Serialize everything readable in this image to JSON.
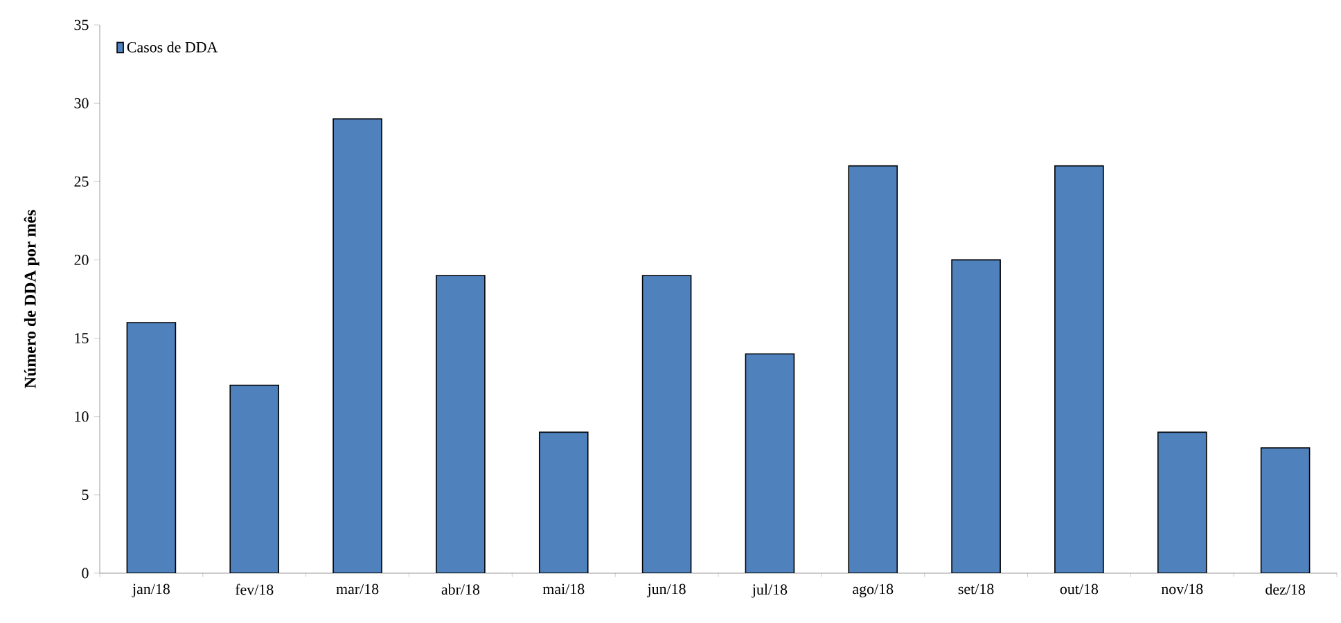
{
  "chart_data": {
    "type": "bar",
    "ylabel": "Número de DDA por mês",
    "categories": [
      "jan/18",
      "fev/18",
      "mar/18",
      "abr/18",
      "mai/18",
      "jun/18",
      "jul/18",
      "ago/18",
      "set/18",
      "out/18",
      "nov/18",
      "dez/18"
    ],
    "series": [
      {
        "name": "Casos de DDA",
        "color": "#4f81bd",
        "values": [
          16,
          12,
          29,
          19,
          9,
          19,
          14,
          26,
          20,
          26,
          9,
          8
        ]
      }
    ],
    "ylim": [
      0,
      35
    ],
    "yticks": [
      0,
      5,
      10,
      15,
      20,
      25,
      30,
      35
    ],
    "grid": false,
    "legend": "top left"
  }
}
